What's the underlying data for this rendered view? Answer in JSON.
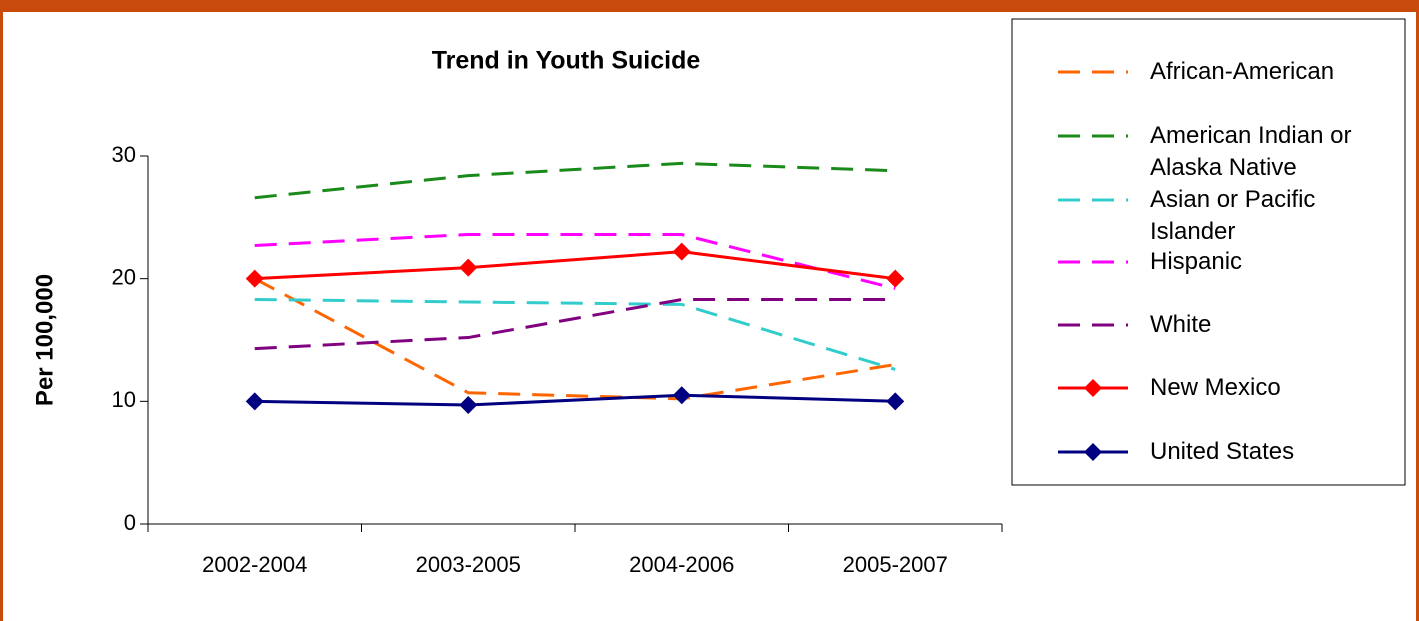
{
  "chart_data": {
    "type": "line",
    "title": "Trend in Youth Suicide",
    "y_label": "Per 100,000",
    "categories": [
      "2002-2004",
      "2003-2005",
      "2004-2006",
      "2005-2007"
    ],
    "ylim": [
      0,
      30
    ],
    "yticks": [
      0,
      10,
      20,
      30
    ],
    "grid": false,
    "legend": "right",
    "series": [
      {
        "name": "African-American",
        "color": "#ff6600",
        "dashed": true,
        "values": [
          20.0,
          10.7,
          10.2,
          13.0
        ]
      },
      {
        "name": "American Indian or Alaska Native",
        "color": "#1a8a1a",
        "dashed": true,
        "values": [
          26.6,
          28.4,
          29.4,
          28.8
        ]
      },
      {
        "name": "Asian or Pacific Islander",
        "color": "#33cccc",
        "dashed": true,
        "values": [
          18.3,
          18.1,
          17.9,
          12.6
        ]
      },
      {
        "name": "Hispanic",
        "color": "#ff00ff",
        "dashed": true,
        "values": [
          22.7,
          23.6,
          23.6,
          19.2
        ]
      },
      {
        "name": "White",
        "color": "#800080",
        "dashed": true,
        "values": [
          14.3,
          15.2,
          18.3,
          18.3
        ]
      },
      {
        "name": "New Mexico",
        "color": "#ff0000",
        "dashed": false,
        "marker": "diamond",
        "values": [
          20.0,
          20.9,
          22.2,
          20.0
        ]
      },
      {
        "name": "United States",
        "color": "#000080",
        "dashed": false,
        "marker": "diamond",
        "values": [
          10.0,
          9.7,
          10.5,
          10.0
        ]
      }
    ]
  }
}
